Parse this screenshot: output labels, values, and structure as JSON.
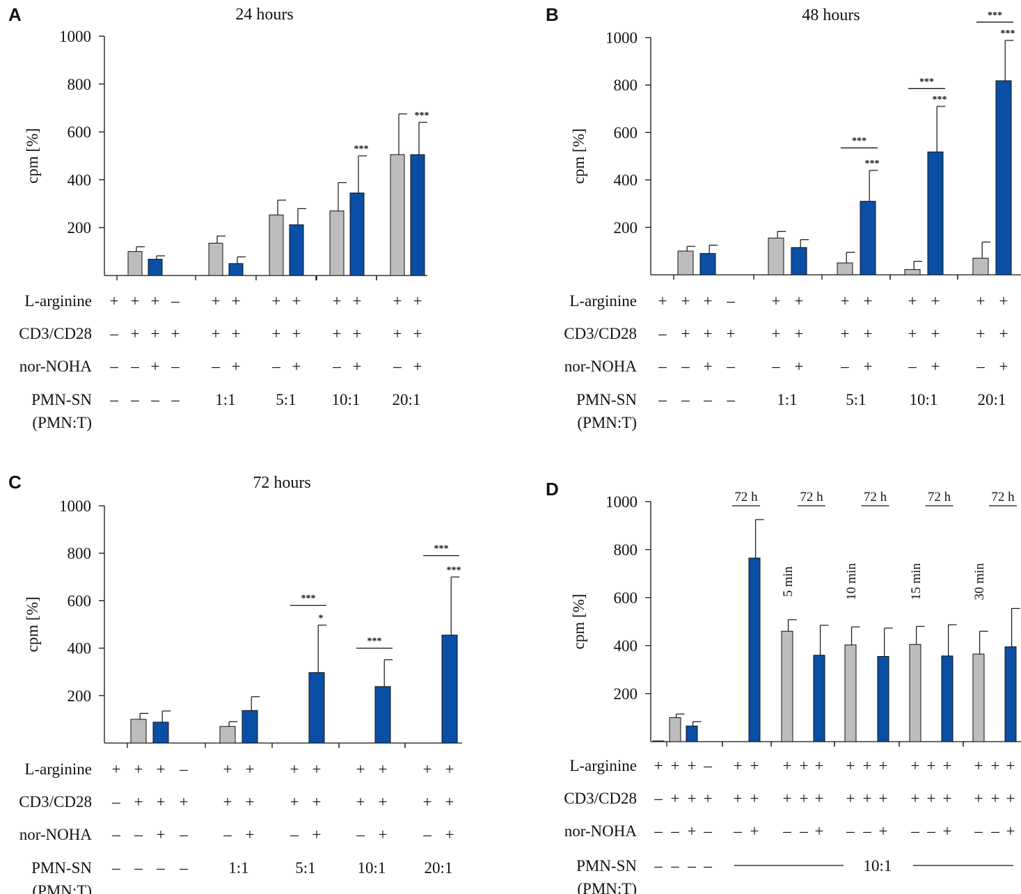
{
  "colors": {
    "gray": "#bdbdbd",
    "blue": "#0a4ea6",
    "axis": "#111111"
  },
  "row_labels": [
    "L-arginine",
    "CD3/CD28",
    "nor-NOHA",
    "PMN-SN",
    "(PMN:T)"
  ],
  "chart_data": [
    {
      "panel": "A",
      "type": "bar",
      "title": "24 hours",
      "ylabel": "cpm [%]",
      "ylim": [
        0,
        1000
      ],
      "yticks": [
        200,
        400,
        600,
        800,
        1000
      ],
      "bars": [
        {
          "color": "gray",
          "value": 0,
          "err": 0
        },
        {
          "color": "gray",
          "value": 100,
          "err": 20
        },
        {
          "color": "blue",
          "value": 68,
          "err": 14
        },
        {
          "color": "blue",
          "value": 0,
          "err": 0
        },
        {
          "color": "gray",
          "value": 135,
          "err": 30
        },
        {
          "color": "blue",
          "value": 50,
          "err": 28
        },
        {
          "color": "gray",
          "value": 253,
          "err": 62
        },
        {
          "color": "blue",
          "value": 212,
          "err": 68
        },
        {
          "color": "gray",
          "value": 270,
          "err": 118
        },
        {
          "color": "blue",
          "value": 345,
          "err": 155,
          "sig": "***"
        },
        {
          "color": "gray",
          "value": 505,
          "err": 170
        },
        {
          "color": "blue",
          "value": 505,
          "err": 135,
          "sig": "***"
        }
      ],
      "brackets": [],
      "rows": {
        "larg": [
          "+",
          "+",
          "+",
          "–",
          "+",
          "+",
          "+",
          "+",
          "+",
          "+",
          "+",
          "+"
        ],
        "cd3": [
          "–",
          "+",
          "+",
          "+",
          "+",
          "+",
          "+",
          "+",
          "+",
          "+",
          "+",
          "+"
        ],
        "nor": [
          "–",
          "–",
          "+",
          "–",
          "–",
          "+",
          "–",
          "+",
          "–",
          "+",
          "–",
          "+"
        ],
        "pmn": [
          "–",
          "–",
          "–",
          "–"
        ]
      },
      "ratios": [
        "1:1",
        "5:1",
        "10:1",
        "20:1"
      ]
    },
    {
      "panel": "B",
      "type": "bar",
      "title": "48 hours",
      "ylabel": "cpm [%]",
      "ylim": [
        0,
        1000
      ],
      "yticks": [
        200,
        400,
        600,
        800,
        1000
      ],
      "bars": [
        {
          "color": "gray",
          "value": 0,
          "err": 0
        },
        {
          "color": "gray",
          "value": 100,
          "err": 20
        },
        {
          "color": "blue",
          "value": 90,
          "err": 35
        },
        {
          "color": "blue",
          "value": 0,
          "err": 0
        },
        {
          "color": "gray",
          "value": 155,
          "err": 28
        },
        {
          "color": "blue",
          "value": 115,
          "err": 33
        },
        {
          "color": "gray",
          "value": 50,
          "err": 45
        },
        {
          "color": "blue",
          "value": 310,
          "err": 130,
          "sig": "***"
        },
        {
          "color": "gray",
          "value": 22,
          "err": 35
        },
        {
          "color": "blue",
          "value": 518,
          "err": 192,
          "sig": "***"
        },
        {
          "color": "gray",
          "value": 70,
          "err": 68
        },
        {
          "color": "blue",
          "value": 818,
          "err": 170,
          "sig": "***"
        }
      ],
      "brackets": [
        {
          "from": 6,
          "to": 7,
          "label": "***",
          "level": 535
        },
        {
          "from": 8,
          "to": 9,
          "label": "***",
          "level": 785
        },
        {
          "from": 10,
          "to": 11,
          "label": "***",
          "level": 1065
        }
      ],
      "rows": {
        "larg": [
          "+",
          "+",
          "+",
          "–",
          "+",
          "+",
          "+",
          "+",
          "+",
          "+",
          "+",
          "+"
        ],
        "cd3": [
          "–",
          "+",
          "+",
          "+",
          "+",
          "+",
          "+",
          "+",
          "+",
          "+",
          "+",
          "+"
        ],
        "nor": [
          "–",
          "–",
          "+",
          "–",
          "–",
          "+",
          "–",
          "+",
          "–",
          "+",
          "–",
          "+"
        ],
        "pmn": [
          "–",
          "–",
          "–",
          "–"
        ]
      },
      "ratios": [
        "1:1",
        "5:1",
        "10:1",
        "20:1"
      ]
    },
    {
      "panel": "C",
      "type": "bar",
      "title": "72 hours",
      "ylabel": "cpm [%]",
      "ylim": [
        0,
        1000
      ],
      "yticks": [
        200,
        400,
        600,
        800,
        1000
      ],
      "bars": [
        {
          "color": "gray",
          "value": 0,
          "err": 0
        },
        {
          "color": "gray",
          "value": 100,
          "err": 25
        },
        {
          "color": "blue",
          "value": 88,
          "err": 47
        },
        {
          "color": "blue",
          "value": 0,
          "err": 0
        },
        {
          "color": "gray",
          "value": 70,
          "err": 20
        },
        {
          "color": "blue",
          "value": 137,
          "err": 58
        },
        {
          "color": "gray",
          "value": 0,
          "err": 0
        },
        {
          "color": "blue",
          "value": 297,
          "err": 200,
          "sig": "*"
        },
        {
          "color": "gray",
          "value": 0,
          "err": 0
        },
        {
          "color": "blue",
          "value": 238,
          "err": 113
        },
        {
          "color": "gray",
          "value": 0,
          "err": 0
        },
        {
          "color": "blue",
          "value": 455,
          "err": 245,
          "sig": "***"
        }
      ],
      "brackets": [
        {
          "from": 6,
          "to": 7,
          "label": "***",
          "level": 580
        },
        {
          "from": 8,
          "to": 9,
          "label": "***",
          "level": 400
        },
        {
          "from": 10,
          "to": 11,
          "label": "***",
          "level": 790
        }
      ],
      "rows": {
        "larg": [
          "+",
          "+",
          "+",
          "–",
          "+",
          "+",
          "+",
          "+",
          "+",
          "+",
          "+",
          "+"
        ],
        "cd3": [
          "–",
          "+",
          "+",
          "+",
          "+",
          "+",
          "+",
          "+",
          "+",
          "+",
          "+",
          "+"
        ],
        "nor": [
          "–",
          "–",
          "+",
          "–",
          "–",
          "+",
          "–",
          "+",
          "–",
          "+",
          "–",
          "+"
        ],
        "pmn": [
          "–",
          "–",
          "–",
          "–"
        ]
      },
      "ratios": [
        "1:1",
        "5:1",
        "10:1",
        "20:1"
      ]
    },
    {
      "panel": "D",
      "type": "bar",
      "title": "",
      "ylabel": "cpm [%]",
      "ylim": [
        0,
        1000
      ],
      "yticks": [
        200,
        400,
        600,
        800,
        1000
      ],
      "bars": [
        {
          "color": "gray",
          "value": 3,
          "err": 0
        },
        {
          "color": "gray",
          "value": 100,
          "err": 15
        },
        {
          "color": "blue",
          "value": 65,
          "err": 18
        },
        {
          "color": "blue",
          "value": 0,
          "err": 0
        },
        {
          "color": "gray",
          "value": 0,
          "err": 0
        },
        {
          "color": "blue",
          "value": 765,
          "err": 160
        },
        {
          "color": "gray",
          "value": 460,
          "err": 48
        },
        {
          "color": "gray",
          "value": 0,
          "err": 0
        },
        {
          "color": "blue",
          "value": 360,
          "err": 125
        },
        {
          "color": "gray",
          "value": 403,
          "err": 75
        },
        {
          "color": "gray",
          "value": 0,
          "err": 0
        },
        {
          "color": "blue",
          "value": 355,
          "err": 118
        },
        {
          "color": "gray",
          "value": 405,
          "err": 75
        },
        {
          "color": "gray",
          "value": 0,
          "err": 0
        },
        {
          "color": "blue",
          "value": 357,
          "err": 130
        },
        {
          "color": "gray",
          "value": 365,
          "err": 95
        },
        {
          "color": "gray",
          "value": 0,
          "err": 0
        },
        {
          "color": "blue",
          "value": 395,
          "err": 160
        }
      ],
      "headers": [
        "72 h",
        "72 h",
        "72 h",
        "72 h",
        "72 h"
      ],
      "durations": [
        "5 min",
        "10 min",
        "15 min",
        "30 min"
      ],
      "rows": {
        "larg": [
          "+",
          "+",
          "+",
          "–",
          "+",
          "+",
          "+",
          "+",
          "+",
          "+",
          "+",
          "+",
          "+",
          "+",
          "+",
          "+",
          "+",
          "+"
        ],
        "cd3": [
          "–",
          "+",
          "+",
          "+",
          "+",
          "+",
          "+",
          "+",
          "+",
          "+",
          "+",
          "+",
          "+",
          "+",
          "+",
          "+",
          "+",
          "+"
        ],
        "nor": [
          "–",
          "–",
          "+",
          "–",
          "–",
          "+",
          "–",
          "–",
          "+",
          "–",
          "–",
          "+",
          "–",
          "–",
          "+",
          "–",
          "–",
          "+"
        ],
        "pmn": [
          "–",
          "–",
          "–",
          "–"
        ]
      },
      "ratio_label": "10:1"
    }
  ]
}
